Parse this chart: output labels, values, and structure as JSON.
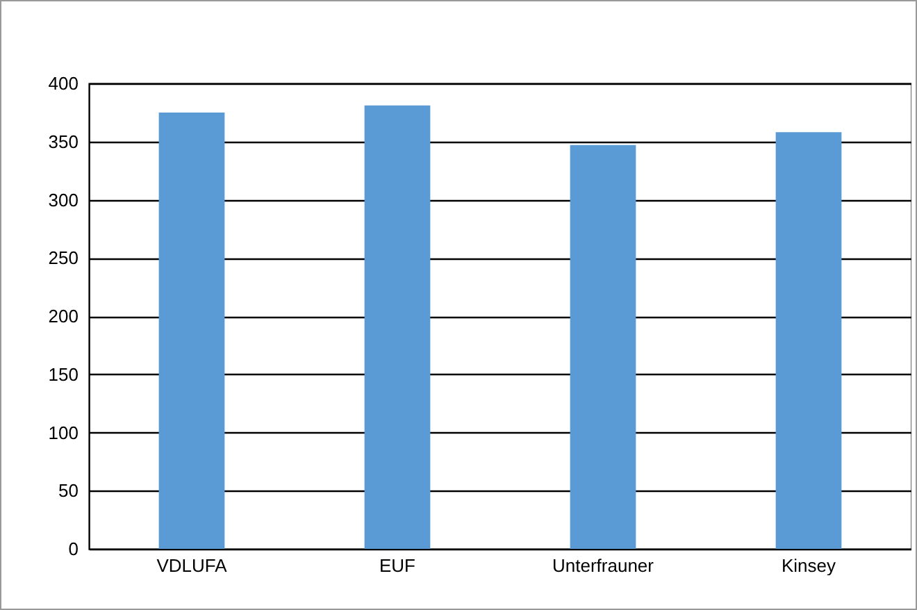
{
  "chart_data": {
    "type": "bar",
    "categories": [
      "VDLUFA",
      "EUF",
      "Unterfrauner",
      "Kinsey"
    ],
    "values": [
      375,
      381,
      347,
      358
    ],
    "color": "#5b9bd5",
    "ylim": [
      0,
      400
    ],
    "yticks": [
      0,
      50,
      100,
      150,
      200,
      250,
      300,
      350,
      400
    ],
    "grid": "y"
  }
}
